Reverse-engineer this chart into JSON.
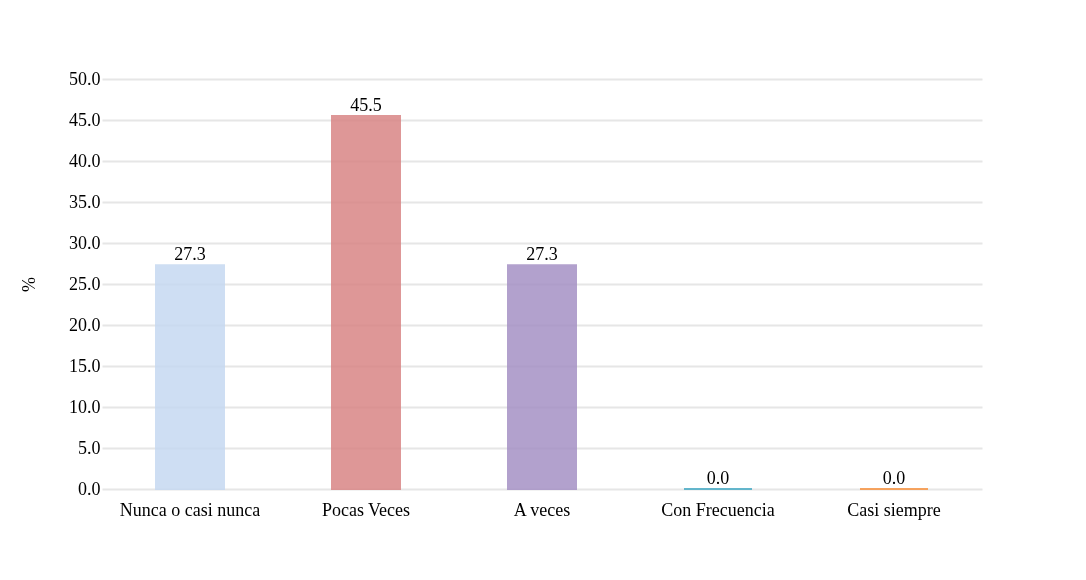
{
  "chart_data": {
    "type": "bar",
    "ylabel": "%",
    "categories": [
      "Nunca o casi nunca",
      "Pocas Veces",
      "A veces",
      "Con Frecuencia",
      "Casi siempre"
    ],
    "values": [
      27.3,
      45.5,
      27.3,
      0.0,
      0.0
    ],
    "value_labels": [
      "27.3",
      "45.5",
      "27.3",
      "0.0",
      "0.0"
    ],
    "colors": [
      "#c6d9f1",
      "#d98585",
      "#a591c5",
      "#4bacc6",
      "#f79646"
    ],
    "ylim": [
      0,
      50
    ],
    "yticks": [
      {
        "value": 0,
        "label": "0.0"
      },
      {
        "value": 5,
        "label": "5.0"
      },
      {
        "value": 10,
        "label": "10.0"
      },
      {
        "value": 15,
        "label": "15.0"
      },
      {
        "value": 20,
        "label": "20.0"
      },
      {
        "value": 25,
        "label": "25.0"
      },
      {
        "value": 30,
        "label": "30.0"
      },
      {
        "value": 35,
        "label": "35.0"
      },
      {
        "value": 40,
        "label": "40.0"
      },
      {
        "value": 45,
        "label": "45.0"
      },
      {
        "value": 50,
        "label": "50.0"
      }
    ],
    "grid": "y"
  }
}
